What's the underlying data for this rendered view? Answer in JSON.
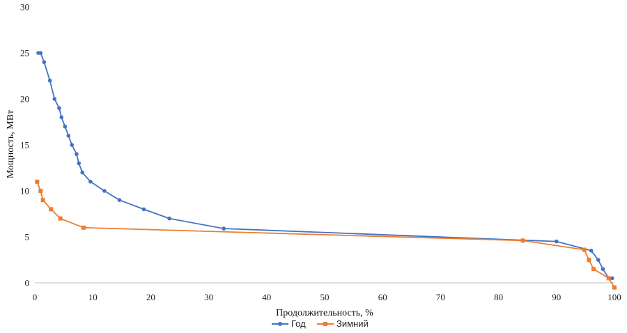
{
  "chart_data": {
    "type": "line",
    "title": "",
    "xlabel": "Продолжительность, %",
    "ylabel": "Мощность, МВт",
    "xlim": [
      0,
      100
    ],
    "ylim": [
      0,
      30
    ],
    "x_ticks": [
      "0",
      "10",
      "20",
      "30",
      "40",
      "50",
      "60",
      "70",
      "80",
      "90",
      "100"
    ],
    "y_ticks": [
      "0",
      "5",
      "10",
      "15",
      "20",
      "25",
      "30"
    ],
    "grid": false,
    "legend_position": "bottom",
    "series": [
      {
        "name": "Год",
        "color": "#4472C4",
        "marker": "circle",
        "points": [
          [
            0.6,
            25
          ],
          [
            1.0,
            25
          ],
          [
            1.6,
            24
          ],
          [
            2.6,
            22
          ],
          [
            3.4,
            20
          ],
          [
            4.2,
            19
          ],
          [
            4.6,
            18
          ],
          [
            5.2,
            17
          ],
          [
            5.8,
            16
          ],
          [
            6.4,
            15
          ],
          [
            7.2,
            14
          ],
          [
            7.6,
            13
          ],
          [
            8.2,
            12
          ],
          [
            9.6,
            11
          ],
          [
            12.0,
            10
          ],
          [
            14.6,
            9
          ],
          [
            18.8,
            8
          ],
          [
            23.2,
            7
          ],
          [
            32.6,
            5.9
          ],
          [
            90.0,
            4.5
          ],
          [
            96.0,
            3.5
          ],
          [
            97.2,
            2.5
          ],
          [
            98.0,
            1.5
          ],
          [
            99.0,
            0.5
          ],
          [
            99.6,
            0.5
          ]
        ]
      },
      {
        "name": "Зимний",
        "color": "#ED7D31",
        "marker": "square",
        "points": [
          [
            0.4,
            11
          ],
          [
            1.0,
            10
          ],
          [
            1.4,
            9
          ],
          [
            2.8,
            8
          ],
          [
            4.4,
            7
          ],
          [
            8.4,
            6
          ],
          [
            84.2,
            4.6
          ],
          [
            94.8,
            3.6
          ],
          [
            95.6,
            2.5
          ],
          [
            96.4,
            1.5
          ],
          [
            99.0,
            0.5
          ],
          [
            100.0,
            -0.5
          ]
        ]
      }
    ]
  }
}
